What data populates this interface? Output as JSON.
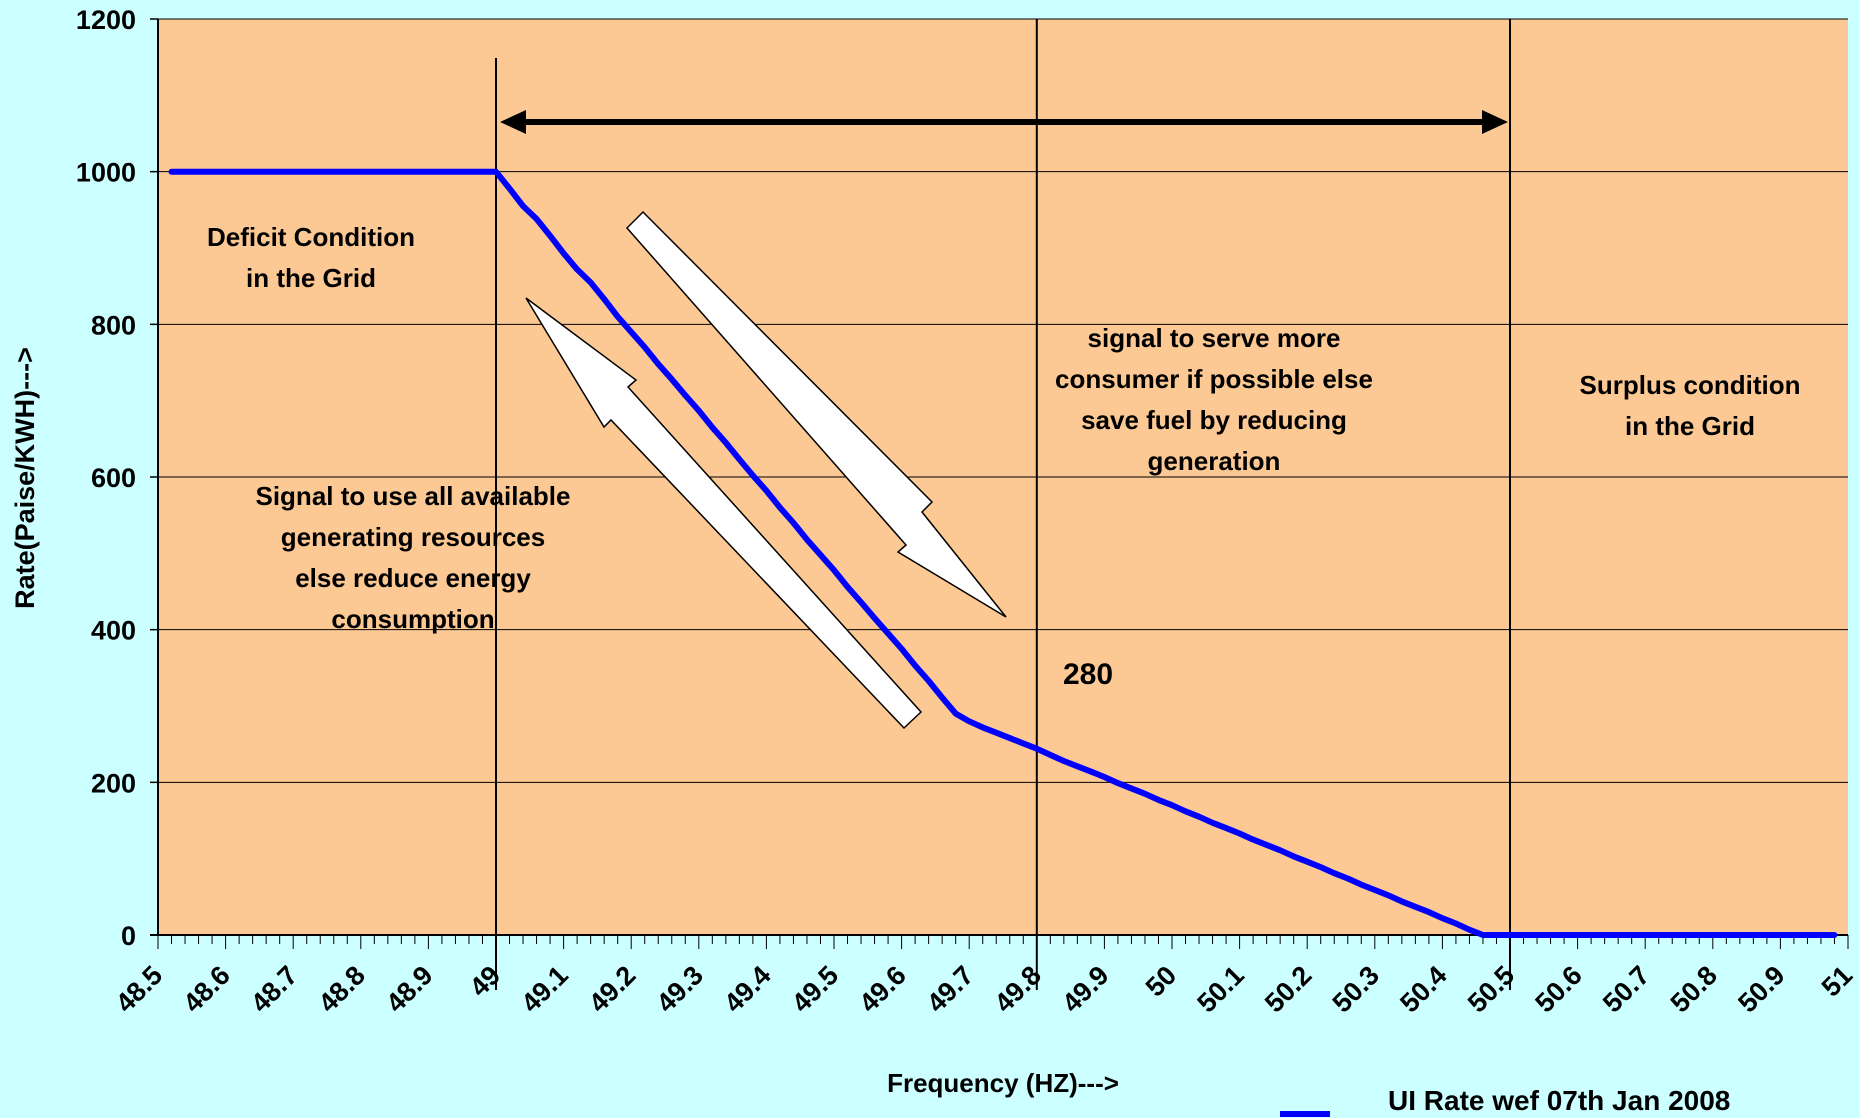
{
  "chart_data": {
    "type": "line",
    "xlabel": "Frequency (HZ)--->",
    "ylabel": "Rate(Paise/KWH)--->",
    "xlim": [
      48.5,
      51.0
    ],
    "ylim": [
      0,
      1200
    ],
    "grid": true,
    "legend_position": "bottom-right",
    "x_ticks": [
      "48.5",
      "48.6",
      "48.7",
      "48.8",
      "48.9",
      "49",
      "49.1",
      "49.2",
      "49.3",
      "49.4",
      "49.5",
      "49.6",
      "49.7",
      "49.8",
      "49.9",
      "50",
      "50.1",
      "50.2",
      "50.3",
      "50.4",
      "50.5",
      "50.6",
      "50.7",
      "50.8",
      "50.9",
      "51"
    ],
    "y_ticks": [
      {
        "value": 0,
        "label": "0"
      },
      {
        "value": 200,
        "label": "200"
      },
      {
        "value": 400,
        "label": "400"
      },
      {
        "value": 600,
        "label": "600"
      },
      {
        "value": 800,
        "label": "800"
      },
      {
        "value": 1000,
        "label": "1000"
      },
      {
        "value": 1200,
        "label": "1200"
      }
    ],
    "series": [
      {
        "name": "UI Rate wef 07th Jan 2008",
        "color": "#0000ff",
        "x": [
          48.52,
          49.0,
          49.02,
          49.04,
          49.06,
          49.08,
          49.1,
          49.12,
          49.14,
          49.16,
          49.18,
          49.2,
          49.22,
          49.24,
          49.26,
          49.28,
          49.3,
          49.32,
          49.34,
          49.36,
          49.38,
          49.4,
          49.42,
          49.44,
          49.46,
          49.48,
          49.5,
          49.52,
          49.54,
          49.56,
          49.58,
          49.6,
          49.62,
          49.64,
          49.66,
          49.68,
          49.7,
          49.72,
          49.74,
          49.76,
          49.78,
          49.8,
          49.82,
          49.84,
          49.86,
          49.88,
          49.9,
          49.92,
          49.94,
          49.96,
          49.98,
          50.0,
          50.02,
          50.04,
          50.06,
          50.08,
          50.1,
          50.12,
          50.14,
          50.16,
          50.18,
          50.2,
          50.22,
          50.24,
          50.26,
          50.28,
          50.3,
          50.32,
          50.34,
          50.36,
          50.38,
          50.4,
          50.42,
          50.44,
          50.46,
          50.48,
          50.5,
          50.52,
          50.54,
          50.56,
          50.58,
          50.6,
          50.62,
          50.64,
          50.66,
          50.68,
          50.7,
          50.72,
          50.74,
          50.76,
          50.78,
          50.8,
          50.82,
          50.84,
          50.86,
          50.88,
          50.9,
          50.92,
          50.94,
          50.96,
          50.98
        ],
        "y": [
          1000,
          1000,
          978,
          955,
          938,
          916,
          893,
          872,
          855,
          833,
          810,
          790,
          770,
          748,
          728,
          707,
          687,
          665,
          645,
          623,
          602,
          582,
          560,
          540,
          518,
          498,
          478,
          456,
          436,
          415,
          395,
          375,
          353,
          333,
          311,
          290,
          280,
          272,
          265,
          258,
          251,
          244,
          236,
          228,
          221,
          214,
          207,
          199,
          192,
          185,
          177,
          170,
          162,
          155,
          147,
          140,
          133,
          125,
          118,
          111,
          103,
          96,
          89,
          81,
          74,
          66,
          59,
          52,
          44,
          37,
          30,
          22,
          15,
          7,
          0,
          0,
          0,
          0,
          0,
          0,
          0,
          0,
          0,
          0,
          0,
          0,
          0,
          0,
          0,
          0,
          0,
          0,
          0,
          0,
          0,
          0,
          0,
          0,
          0,
          0,
          0
        ]
      }
    ],
    "vertical_lines": [
      49.0,
      49.8,
      50.5
    ],
    "annotations": {
      "deficit": [
        "Deficit Condition",
        "in the Grid"
      ],
      "signal_use": [
        "Signal to use all available",
        "generating resources",
        "else reduce energy",
        "consumption"
      ],
      "signal_serve": [
        "signal to serve more",
        "consumer if possible else",
        "save fuel by reducing",
        "generation"
      ],
      "surplus": [
        "Surplus condition",
        "in the Grid"
      ],
      "value_280": "280"
    }
  }
}
